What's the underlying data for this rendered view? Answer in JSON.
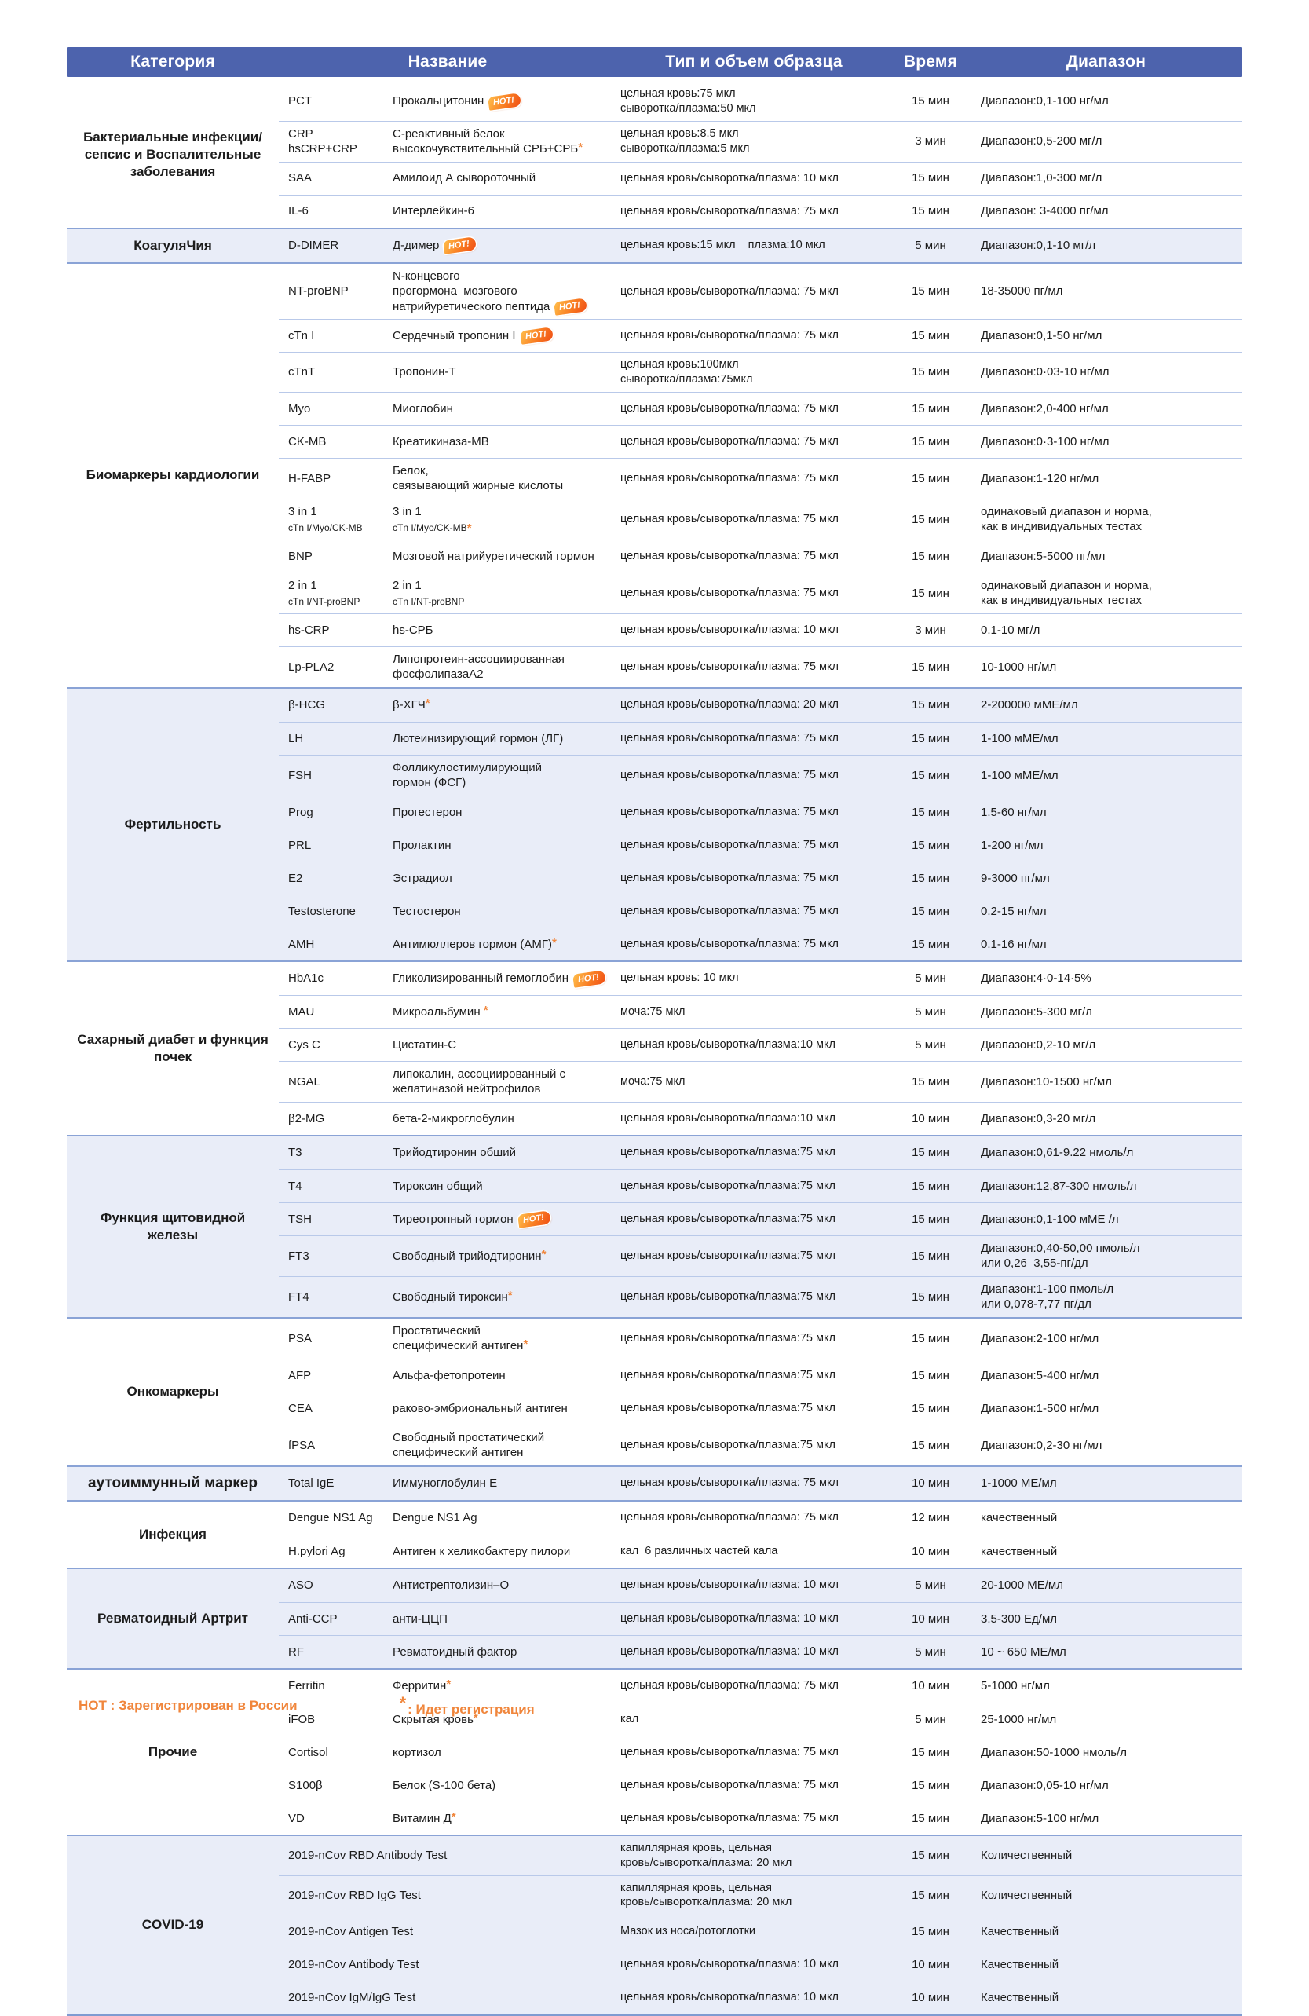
{
  "header": {
    "columns": [
      "Категория",
      "Название",
      "Тип и объем образца",
      "Время",
      "Диапазон"
    ]
  },
  "legend": {
    "hot_note": "HOT : Зарегистрирован в России",
    "star_symbol": "*",
    "star_note": ": Идет регистрация"
  },
  "colors": {
    "header_bg": "#4d63ad",
    "band_bg": "#e9edf8",
    "row_line": "#b9c9e9",
    "section_line": "#8aa3d6",
    "accent_orange": "#f0863c"
  },
  "hot_label": "HOT!",
  "sections": [
    {
      "category": "Бактериальные инфекции/сепсис и Воспалительные заболевания",
      "rows": [
        {
          "code": "PCT",
          "name": "Прокальцитонин",
          "hot": true,
          "sample": "цельная кровь:75 мкл\nсыворотка/плазма:50 мкл",
          "time": "15 мин",
          "range": "Диапазон:0,1-100 нг/мл"
        },
        {
          "code": "CRP\nhsCRP+CRP",
          "name": "С-реактивный белок\nвысокочувствительный СРБ+СРБ",
          "star": true,
          "sample": "цельная кровь:8.5 мкл\nсыворотка/плазма:5 мкл",
          "time": "3 мин",
          "range": "Диапазон:0,5-200 мг/л"
        },
        {
          "code": "SAA",
          "name": "Амилоид А сывороточный",
          "sample": "цельная кровь/сыворотка/плазма: 10 мкл",
          "time": "15 мин",
          "range": "Диапазон:1,0-300 мг/л"
        },
        {
          "code": "IL-6",
          "name": "Интерлейкин-6",
          "sample": "цельная кровь/сыворотка/плазма: 75 мкл",
          "time": "15 мин",
          "range": "Диапазон: 3-4000 пг/мл"
        }
      ]
    },
    {
      "category": "КоагуляЧия",
      "rows": [
        {
          "code": "D-DIMER",
          "name": "Д-димер",
          "hot": true,
          "sample": "цельная кровь:15 мкл    плазма:10 мкл",
          "time": "5 мин",
          "range": "Диапазон:0,1-10 мг/л"
        }
      ]
    },
    {
      "category": "Биомаркеры кардиологии",
      "rows": [
        {
          "code": "NT-proBNP",
          "name": "N-концевого\nпрогормона  мозгового\nнатрийуретического пептида",
          "hot": true,
          "sample": "цельная кровь/сыворотка/плазма: 75 мкл",
          "time": "15 мин",
          "range": "18-35000 пг/мл"
        },
        {
          "code": "cTn I",
          "name": "Сердечный тропонин I",
          "hot": true,
          "sample": "цельная кровь/сыворотка/плазма: 75 мкл",
          "time": "15 мин",
          "range": "Диапазон:0,1-50 нг/мл"
        },
        {
          "code": "cTnT",
          "name": "Тропонин-Т",
          "sample": "цельная кровь:100мкл\nсыворотка/плазма:75мкл",
          "time": "15 мин",
          "range": "Диапазон:0·03-10 нг/мл"
        },
        {
          "code": "Myo",
          "name": "Миоглобин",
          "sample": "цельная кровь/сыворотка/плазма: 75 мкл",
          "time": "15 мин",
          "range": "Диапазон:2,0-400 нг/мл"
        },
        {
          "code": "CK-MB",
          "name": "Креатикиназа-МВ",
          "sample": "цельная кровь/сыворотка/плазма: 75 мкл",
          "time": "15 мин",
          "range": "Диапазон:0·3-100 нг/мл"
        },
        {
          "code": "H-FABP",
          "name": "Белок,\nсвязывающий жирные кислоты",
          "sample": "цельная кровь/сыворотка/плазма: 75 мкл",
          "time": "15 мин",
          "range": "Диапазон:1-120 нг/мл"
        },
        {
          "code": "3 in 1",
          "code_sub": "cTn I/Myo/CK-MB",
          "name": "3 in 1",
          "name_sub": "cTn I/Myo/CK-MB",
          "star": true,
          "sample": "цельная кровь/сыворотка/плазма: 75 мкл",
          "time": "15 мин",
          "range": "одинаковый диапазон и норма,\nкак в индивидуальных тестах"
        },
        {
          "code": "BNP",
          "name": "Мозговой натрийуретический гормон",
          "sample": "цельная кровь/сыворотка/плазма: 75 мкл",
          "time": "15 мин",
          "range": "Диапазон:5-5000 пг/мл"
        },
        {
          "code": "2 in 1",
          "code_sub": "cTn I/NT-proBNP",
          "name": "2 in 1",
          "name_sub": "cTn I/NT-proBNP",
          "sample": "цельная кровь/сыворотка/плазма: 75 мкл",
          "time": "15 мин",
          "range": "одинаковый диапазон и норма,\nкак в индивидуальных тестах"
        },
        {
          "code": "hs-CRP",
          "name": "hs-СРБ",
          "sample": "цельная кровь/сыворотка/плазма: 10 мкл",
          "time": "3 мин",
          "range": "0.1-10 мг/л"
        },
        {
          "code": "Lp-PLA2",
          "name": "Липопротеин-ассоциированная\nфосфолипазаА2",
          "sample": "цельная кровь/сыворотка/плазма: 75 мкл",
          "time": "15 мин",
          "range": "10-1000 нг/мл"
        }
      ]
    },
    {
      "category": "Фертильность",
      "rows": [
        {
          "code": "β-HCG",
          "name": "β-ХГЧ",
          "star": true,
          "sample": "цельная кровь/сыворотка/плазма: 20 мкл",
          "time": "15 мин",
          "range": "2-200000 мМЕ/мл"
        },
        {
          "code": "LH",
          "name": "Лютеинизирующий гормон (ЛГ)",
          "sample": "цельная кровь/сыворотка/плазма: 75 мкл",
          "time": "15 мин",
          "range": "1-100 мМЕ/мл"
        },
        {
          "code": "FSH",
          "name": "Фолликулостимулирующий\nгормон (ФСГ)",
          "sample": "цельная кровь/сыворотка/плазма: 75 мкл",
          "time": "15 мин",
          "range": "1-100 мМЕ/мл"
        },
        {
          "code": "Prog",
          "name": "Прогестерон",
          "sample": "цельная кровь/сыворотка/плазма: 75 мкл",
          "time": "15 мин",
          "range": "1.5-60 нг/мл"
        },
        {
          "code": "PRL",
          "name": "Пролактин",
          "sample": "цельная кровь/сыворотка/плазма: 75 мкл",
          "time": "15 мин",
          "range": "1-200 нг/мл"
        },
        {
          "code": "E2",
          "name": "Эстрадиол",
          "sample": "цельная кровь/сыворотка/плазма: 75 мкл",
          "time": "15 мин",
          "range": "9-3000 пг/мл"
        },
        {
          "code": "Testosterone",
          "name": "Тестостерон",
          "sample": "цельная кровь/сыворотка/плазма: 75 мкл",
          "time": "15 мин",
          "range": "0.2-15 нг/мл"
        },
        {
          "code": "AMH",
          "name": "Антимюллеров гормон (АМГ)",
          "star": true,
          "sample": "цельная кровь/сыворотка/плазма: 75 мкл",
          "time": "15 мин",
          "range": "0.1-16 нг/мл"
        }
      ]
    },
    {
      "category": "Сахарный диабет и функция почек",
      "rows": [
        {
          "code": "HbA1c",
          "name": "Гликолизированный гемоглобин",
          "hot": true,
          "sample": "цельная кровь: 10 мкл",
          "time": "5 мин",
          "range": "Диапазон:4·0-14·5%"
        },
        {
          "code": "MAU",
          "name": "Микроальбумин ",
          "star": true,
          "sample": "моча:75 мкл",
          "time": "5 мин",
          "range": "Диапазон:5-300 мг/л"
        },
        {
          "code": "Cys C",
          "name": "Цистатин-С",
          "sample": "цельная кровь/сыворотка/плазма:10 мкл",
          "time": "5 мин",
          "range": "Диапазон:0,2-10 мг/л"
        },
        {
          "code": "NGAL",
          "name": "липокалин, ассоциированный с\nжелатиназой нейтрофилов",
          "sample": "моча:75 мкл",
          "time": "15 мин",
          "range": "Диапазон:10-1500 нг/мл"
        },
        {
          "code": "β2-MG",
          "name": "бета-2-микроглобулин",
          "sample": "цельная кровь/сыворотка/плазма:10 мкл",
          "time": "10 мин",
          "range": "Диапазон:0,3-20 мг/л"
        }
      ]
    },
    {
      "category": "Функция щитовидной железы",
      "rows": [
        {
          "code": "T3",
          "name": "Трийодтиронин обший",
          "sample": "цельная кровь/сыворотка/плазма:75 мкл",
          "time": "15 мин",
          "range": "Диапазон:0,61-9.22 нмоль/л"
        },
        {
          "code": "T4",
          "name": "Тироксин общий",
          "sample": "цельная кровь/сыворотка/плазма:75 мкл",
          "time": "15 мин",
          "range": "Диапазон:12,87-300 нмоль/л"
        },
        {
          "code": "TSH",
          "name": "Тиреотропный гормон",
          "hot": true,
          "sample": "цельная кровь/сыворотка/плазма:75 мкл",
          "time": "15 мин",
          "range": "Диапазон:0,1-100 мМЕ /л"
        },
        {
          "code": "FT3",
          "name": "Свободный трийодтиронин",
          "star": true,
          "sample": "цельная кровь/сыворотка/плазма:75 мкл",
          "time": "15 мин",
          "range": "Диапазон:0,40-50,00 пмоль/л\nили 0,26  3,55-пг/дл"
        },
        {
          "code": "FT4",
          "name": "Свободный тироксин",
          "star": true,
          "sample": "цельная кровь/сыворотка/плазма:75 мкл",
          "time": "15 мин",
          "range": "Диапазон:1-100 пмоль/л\nили 0,078-7,77 пг/дл"
        }
      ]
    },
    {
      "category": "Онкомаркеры",
      "rows": [
        {
          "code": "PSA",
          "name": "Простатический\nспецифический антиген",
          "star": true,
          "sample": "цельная кровь/сыворотка/плазма:75 мкл",
          "time": "15 мин",
          "range": "Диапазон:2-100 нг/мл"
        },
        {
          "code": "AFP",
          "name": "Альфа-фетопротеин",
          "sample": "цельная кровь/сыворотка/плазма:75 мкл",
          "time": "15 мин",
          "range": "Диапазон:5-400 нг/мл"
        },
        {
          "code": "CEA",
          "name": "раково-эмбриональный антиген",
          "sample": "цельная кровь/сыворотка/плазма:75 мкл",
          "time": "15 мин",
          "range": "Диапазон:1-500 нг/мл"
        },
        {
          "code": "fPSA",
          "name": "Свободный простатический\nспецифический антиген",
          "sample": "цельная кровь/сыворотка/плазма:75 мкл",
          "time": "15 мин",
          "range": "Диапазон:0,2-30 нг/мл"
        }
      ]
    },
    {
      "category": "аутоиммунный маркер",
      "big": true,
      "rows": [
        {
          "code": "Total IgE",
          "name": "Иммуноглобулин Е",
          "sample": "цельная кровь/сыворотка/плазма: 75 мкл",
          "time": "10 мин",
          "range": "1-1000 МЕ/мл"
        }
      ]
    },
    {
      "category": "Инфекция",
      "rows": [
        {
          "code": "Dengue NS1 Ag",
          "name": "Dengue NS1 Ag",
          "sample": "цельная кровь/сыворотка/плазма: 75 мкл",
          "time": "12 мин",
          "range": "качественный"
        },
        {
          "code": "H.pylori Ag",
          "name": "Антиген к хеликобактеру пилори",
          "sample": "кал  6 различных частей кала",
          "time": "10 мин",
          "range": "качественный"
        }
      ]
    },
    {
      "category": "Ревматоидный Артрит",
      "rows": [
        {
          "code": "ASO",
          "name": "Антистрептолизин–О",
          "sample": "цельная кровь/сыворотка/плазма: 10 мкл",
          "time": "5 мин",
          "range": "20-1000 МЕ/мл"
        },
        {
          "code": "Anti-CCP",
          "name": "анти-ЦЦП",
          "sample": "цельная кровь/сыворотка/плазма: 10 мкл",
          "time": "10 мин",
          "range": "3.5-300 Ед/мл"
        },
        {
          "code": "RF",
          "name": "Ревматоидный фактор",
          "sample": "цельная кровь/сыворотка/плазма: 10 мкл",
          "time": "5 мин",
          "range": "10 ~ 650 МЕ/мл"
        }
      ]
    },
    {
      "category": "Прочие",
      "rows": [
        {
          "code": "Ferritin",
          "name": "Ферритин",
          "star": true,
          "sample": "цельная кровь/сыворотка/плазма: 75 мкл",
          "time": "10 мин",
          "range": "5-1000 нг/мл"
        },
        {
          "code": "iFOB",
          "name": "Скрытая кровь",
          "star": true,
          "sample": "кал",
          "time": "5 мин",
          "range": "25-1000 нг/мл"
        },
        {
          "code": "Cortisol",
          "name": "кортизол",
          "sample": "цельная кровь/сыворотка/плазма: 75 мкл",
          "time": "15 мин",
          "range": "Диапазон:50-1000 нмоль/л"
        },
        {
          "code": "S100β",
          "name": "Белок (S-100 бета)",
          "sample": "цельная кровь/сыворотка/плазма: 75 мкл",
          "time": "15 мин",
          "range": "Диапазон:0,05-10 нг/мл"
        },
        {
          "code": "VD",
          "name": "Витамин Д",
          "star": true,
          "sample": "цельная кровь/сыворотка/плазма: 75 мкл",
          "time": "15 мин",
          "range": "Диапазон:5-100 нг/мл"
        }
      ]
    },
    {
      "category": "COVID-19",
      "rows": [
        {
          "code": "2019-nCov RBD Antibody Test",
          "wide": true,
          "sample": "капиллярная кровь, цельная\nкровь/сыворотка/плазма: 20 мкл",
          "time": "15 мин",
          "range": "Количественный"
        },
        {
          "code": "2019-nCov RBD IgG Test",
          "wide": true,
          "sample": "капиллярная кровь, цельная\nкровь/сыворотка/плазма: 20 мкл",
          "time": "15 мин",
          "range": "Количественный"
        },
        {
          "code": "2019-nCov Antigen Test",
          "wide": true,
          "sample": "Мазок из носа/ротоглотки",
          "time": "15 мин",
          "range": "Качественный"
        },
        {
          "code": "2019-nCov Antibody Test",
          "wide": true,
          "sample": "цельная кровь/сыворотка/плазма: 10 мкл",
          "time": "10 мин",
          "range": "Качественный"
        },
        {
          "code": "2019-nCov IgM/IgG Test",
          "wide": true,
          "sample": "цельная кровь/сыворотка/плазма: 10 мкл",
          "time": "10 мин",
          "range": "Качественный"
        }
      ]
    }
  ]
}
